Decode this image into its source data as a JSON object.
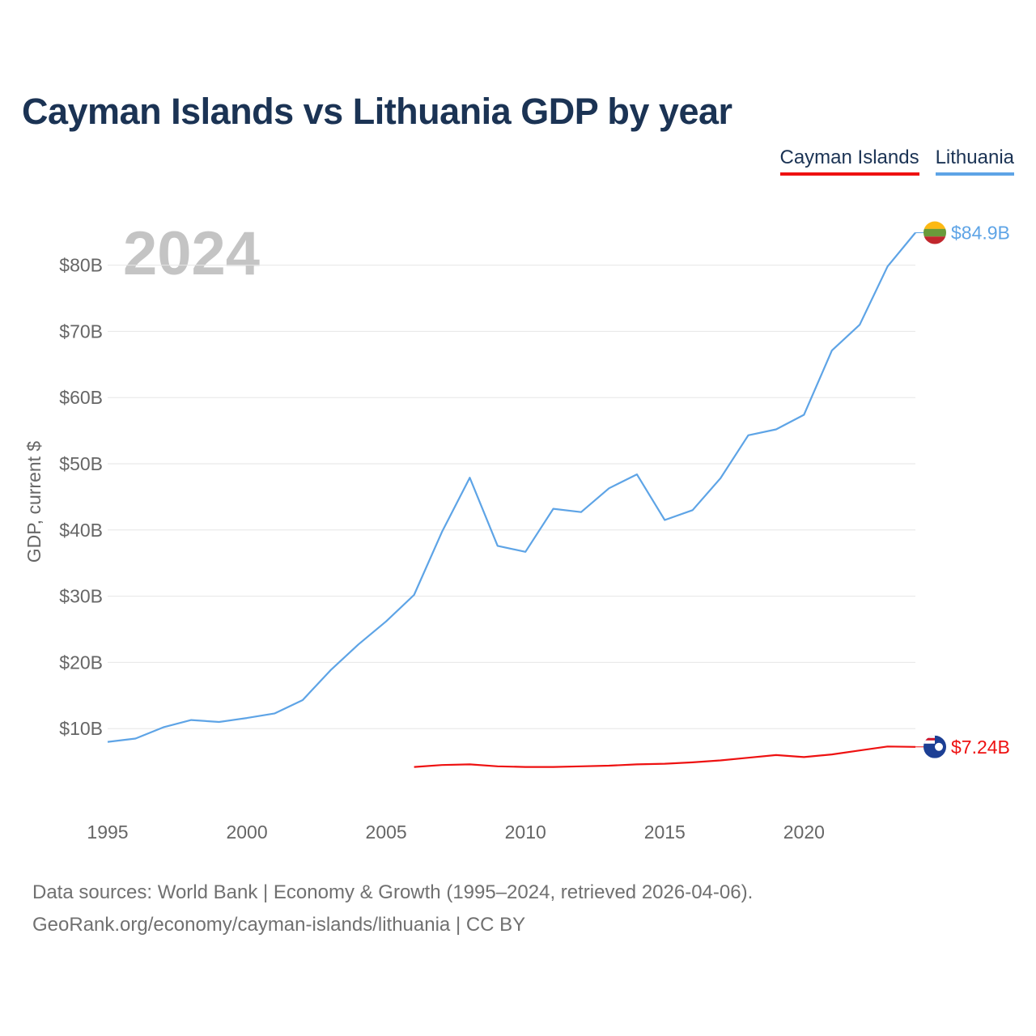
{
  "title": "Cayman Islands vs Lithuania GDP by year",
  "legend": [
    {
      "name": "Cayman Islands",
      "color": "#ee1111"
    },
    {
      "name": "Lithuania",
      "color": "#5ea4e6"
    }
  ],
  "chart_data": {
    "type": "line",
    "title": "Cayman Islands vs Lithuania GDP by year",
    "year_label": "2024",
    "ylabel": "GDP, current $",
    "xlabel": "",
    "x_ticks": [
      1995,
      2000,
      2005,
      2010,
      2015,
      2020
    ],
    "y_ticks": [
      {
        "value": 10,
        "label": "$10B"
      },
      {
        "value": 20,
        "label": "$20B"
      },
      {
        "value": 30,
        "label": "$30B"
      },
      {
        "value": 40,
        "label": "$40B"
      },
      {
        "value": 50,
        "label": "$50B"
      },
      {
        "value": 60,
        "label": "$60B"
      },
      {
        "value": 70,
        "label": "$70B"
      },
      {
        "value": 80,
        "label": "$80B"
      }
    ],
    "xlim": [
      1995,
      2024
    ],
    "ylim": [
      0,
      85
    ],
    "grid": true,
    "series": [
      {
        "name": "Lithuania",
        "color": "#5ea4e6",
        "end_label": "$84.9B",
        "flag": "lithuania-flag-icon",
        "x": [
          1995,
          1996,
          1997,
          1998,
          1999,
          2000,
          2001,
          2002,
          2003,
          2004,
          2005,
          2006,
          2007,
          2008,
          2009,
          2010,
          2011,
          2012,
          2013,
          2014,
          2015,
          2016,
          2017,
          2018,
          2019,
          2020,
          2021,
          2022,
          2023,
          2024
        ],
        "values": [
          8.0,
          8.5,
          10.2,
          11.3,
          11.0,
          11.6,
          12.3,
          14.3,
          18.8,
          22.7,
          26.2,
          30.2,
          39.7,
          47.9,
          37.6,
          36.7,
          43.2,
          42.7,
          46.3,
          48.4,
          41.5,
          43.0,
          47.8,
          54.3,
          55.2,
          57.4,
          67.1,
          71.0,
          79.8,
          84.9
        ]
      },
      {
        "name": "Cayman Islands",
        "color": "#ee1111",
        "end_label": "$7.24B",
        "flag": "cayman-islands-flag-icon",
        "x": [
          2006,
          2007,
          2008,
          2009,
          2010,
          2011,
          2012,
          2013,
          2014,
          2015,
          2016,
          2017,
          2018,
          2019,
          2020,
          2021,
          2022,
          2023,
          2024
        ],
        "values": [
          4.2,
          4.5,
          4.6,
          4.3,
          4.2,
          4.2,
          4.3,
          4.4,
          4.6,
          4.7,
          4.9,
          5.2,
          5.6,
          6.0,
          5.7,
          6.1,
          6.7,
          7.3,
          7.24
        ]
      }
    ]
  },
  "footer": {
    "line1": "Data sources: World Bank | Economy & Growth (1995–2024, retrieved 2026-04-06).",
    "line2": "GeoRank.org/economy/cayman-islands/lithuania | CC BY"
  }
}
